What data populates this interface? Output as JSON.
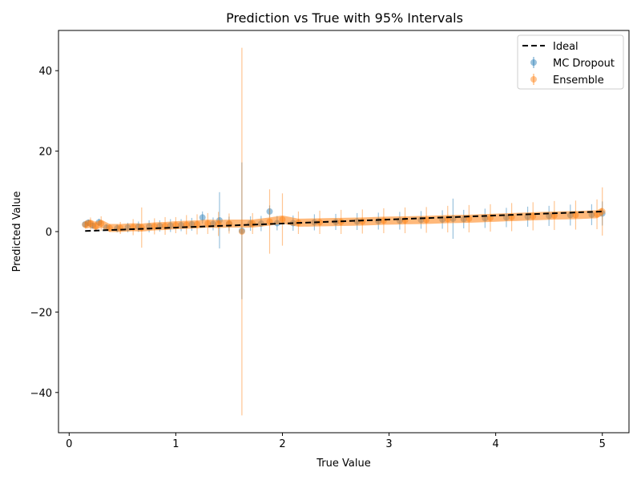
{
  "chart_data": {
    "type": "scatter",
    "title": "Prediction vs True with 95% Intervals",
    "xlabel": "True Value",
    "ylabel": "Predicted Value",
    "xlim": [
      -0.1,
      5.25
    ],
    "ylim": [
      -50,
      50
    ],
    "x_ticks": [
      0,
      1,
      2,
      3,
      4,
      5
    ],
    "x_tick_labels": [
      "0",
      "1",
      "2",
      "3",
      "4",
      "5"
    ],
    "y_ticks": [
      -40,
      -20,
      0,
      20,
      40
    ],
    "y_tick_labels": [
      "−40",
      "−20",
      "0",
      "20",
      "40"
    ],
    "grid": false,
    "legend_position": "top-right",
    "legend": [
      {
        "label": "Ideal",
        "kind": "line",
        "color": "#000000"
      },
      {
        "label": "MC Dropout",
        "kind": "errorbar",
        "color": "#1f77b4"
      },
      {
        "label": "Ensemble",
        "kind": "errorbar",
        "color": "#ff7f0e"
      }
    ],
    "ideal_line": {
      "name": "Ideal",
      "x": [
        0.15,
        5.0
      ],
      "y": [
        0.15,
        5.0
      ],
      "color": "#000000",
      "style": "dashed"
    },
    "series": [
      {
        "name": "MC Dropout",
        "color": "#1f77b4",
        "points": [
          [
            0.15,
            1.8,
            0.6
          ],
          [
            0.18,
            2.2,
            0.8
          ],
          [
            0.22,
            1.5,
            0.7
          ],
          [
            0.28,
            2.3,
            0.9
          ],
          [
            0.35,
            1.0,
            0.8
          ],
          [
            0.45,
            0.8,
            1.0
          ],
          [
            0.55,
            1.0,
            1.2
          ],
          [
            0.65,
            1.2,
            1.3
          ],
          [
            0.75,
            1.3,
            1.5
          ],
          [
            0.85,
            1.4,
            1.4
          ],
          [
            0.95,
            1.5,
            1.6
          ],
          [
            1.05,
            1.6,
            1.5
          ],
          [
            1.15,
            1.8,
            1.6
          ],
          [
            1.25,
            3.5,
            1.5
          ],
          [
            1.35,
            1.9,
            1.6
          ],
          [
            1.41,
            2.8,
            7.0
          ],
          [
            1.5,
            1.9,
            1.8
          ],
          [
            1.62,
            0.2,
            17.0
          ],
          [
            1.7,
            2.0,
            1.8
          ],
          [
            1.8,
            2.0,
            1.9
          ],
          [
            1.88,
            5.0,
            1.5
          ],
          [
            1.95,
            2.1,
            1.8
          ],
          [
            2.1,
            2.1,
            1.9
          ],
          [
            2.3,
            2.3,
            2.0
          ],
          [
            2.5,
            2.4,
            2.0
          ],
          [
            2.7,
            2.5,
            2.1
          ],
          [
            2.9,
            2.6,
            2.1
          ],
          [
            3.1,
            2.7,
            2.2
          ],
          [
            3.3,
            2.9,
            2.2
          ],
          [
            3.5,
            3.0,
            2.3
          ],
          [
            3.6,
            3.2,
            5.0
          ],
          [
            3.7,
            3.1,
            2.3
          ],
          [
            3.9,
            3.3,
            2.4
          ],
          [
            4.1,
            3.5,
            2.4
          ],
          [
            4.3,
            3.7,
            2.5
          ],
          [
            4.5,
            3.9,
            2.5
          ],
          [
            4.7,
            4.1,
            2.6
          ],
          [
            4.9,
            4.2,
            2.6
          ],
          [
            5.0,
            4.5,
            3.0
          ]
        ]
      },
      {
        "name": "Ensemble",
        "color": "#ff7f0e",
        "points": [
          [
            0.15,
            1.7,
            0.8
          ],
          [
            0.2,
            2.0,
            1.5
          ],
          [
            0.25,
            1.4,
            1.2
          ],
          [
            0.3,
            2.0,
            1.8
          ],
          [
            0.38,
            0.9,
            1.0
          ],
          [
            0.48,
            0.9,
            1.5
          ],
          [
            0.6,
            1.1,
            2.0
          ],
          [
            0.68,
            1.0,
            5.0
          ],
          [
            0.8,
            1.3,
            2.0
          ],
          [
            0.9,
            1.4,
            2.2
          ],
          [
            1.0,
            1.6,
            2.0
          ],
          [
            1.1,
            1.7,
            2.4
          ],
          [
            1.2,
            1.8,
            2.5
          ],
          [
            1.3,
            2.0,
            2.6
          ],
          [
            1.4,
            1.9,
            3.0
          ],
          [
            1.5,
            2.0,
            2.5
          ],
          [
            1.62,
            0.0,
            45.7
          ],
          [
            1.72,
            2.0,
            2.6
          ],
          [
            1.88,
            2.5,
            8.0
          ],
          [
            2.0,
            3.0,
            6.5
          ],
          [
            2.15,
            2.2,
            2.8
          ],
          [
            2.35,
            2.3,
            2.9
          ],
          [
            2.55,
            2.4,
            3.0
          ],
          [
            2.75,
            2.5,
            3.0
          ],
          [
            2.95,
            2.7,
            3.1
          ],
          [
            3.15,
            2.8,
            3.2
          ],
          [
            3.35,
            2.9,
            3.2
          ],
          [
            3.55,
            3.1,
            3.3
          ],
          [
            3.75,
            3.2,
            3.4
          ],
          [
            3.95,
            3.4,
            3.4
          ],
          [
            4.15,
            3.6,
            3.5
          ],
          [
            4.35,
            3.8,
            3.5
          ],
          [
            4.55,
            4.0,
            3.6
          ],
          [
            4.75,
            4.1,
            3.6
          ],
          [
            4.95,
            4.3,
            3.7
          ],
          [
            5.0,
            5.0,
            6.0
          ]
        ]
      }
    ]
  }
}
